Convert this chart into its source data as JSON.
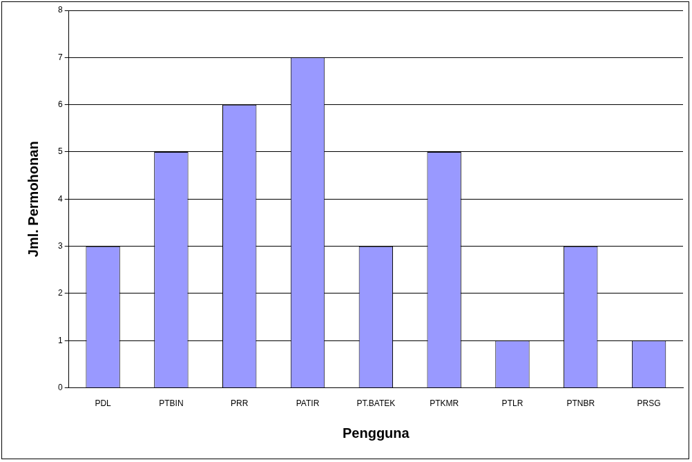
{
  "chart_data": {
    "type": "bar",
    "xlabel": "Pengguna",
    "ylabel": "Jml. Permohonan",
    "categories": [
      "PDL",
      "PTBIN",
      "PRR",
      "PATIR",
      "PT.BATEK",
      "PTKMR",
      "PTLR",
      "PTNBR",
      "PRSG"
    ],
    "values": [
      3,
      5,
      6,
      7,
      3,
      5,
      1,
      3,
      1
    ],
    "color": "#9999ff",
    "ylim": [
      0,
      8
    ],
    "yticks": [
      0,
      1,
      2,
      3,
      4,
      5,
      6,
      7,
      8
    ],
    "grid": "y",
    "legend": false
  }
}
